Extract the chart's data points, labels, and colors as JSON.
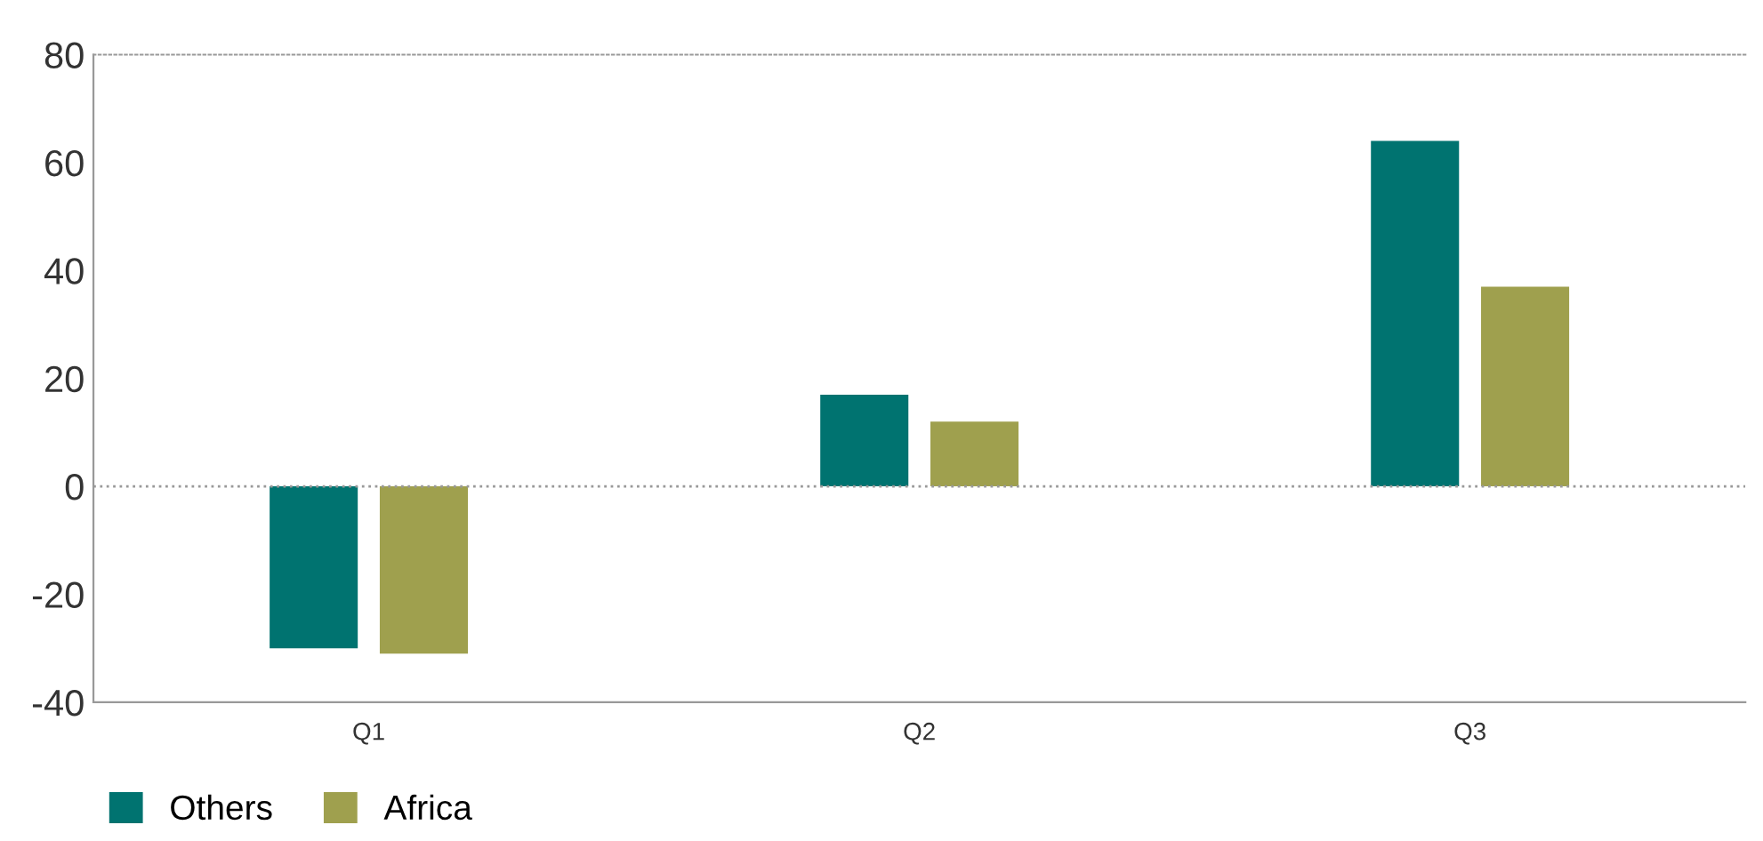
{
  "chart_data": {
    "type": "bar",
    "categories": [
      "Q1",
      "Q2",
      "Q3"
    ],
    "series": [
      {
        "name": "Others",
        "color": "#007370",
        "values": [
          -30,
          17,
          64
        ]
      },
      {
        "name": "Africa",
        "color": "#9fa04e",
        "values": [
          -31,
          12,
          37
        ]
      }
    ],
    "ylim": [
      -40,
      80
    ],
    "yticks": [
      -40,
      -20,
      0,
      20,
      40,
      60,
      80
    ],
    "grid": false,
    "legend": "bottom left",
    "ref_lines": [
      {
        "axis": "y",
        "value": 0,
        "color": "#999999",
        "line_style": "dotted"
      }
    ]
  }
}
